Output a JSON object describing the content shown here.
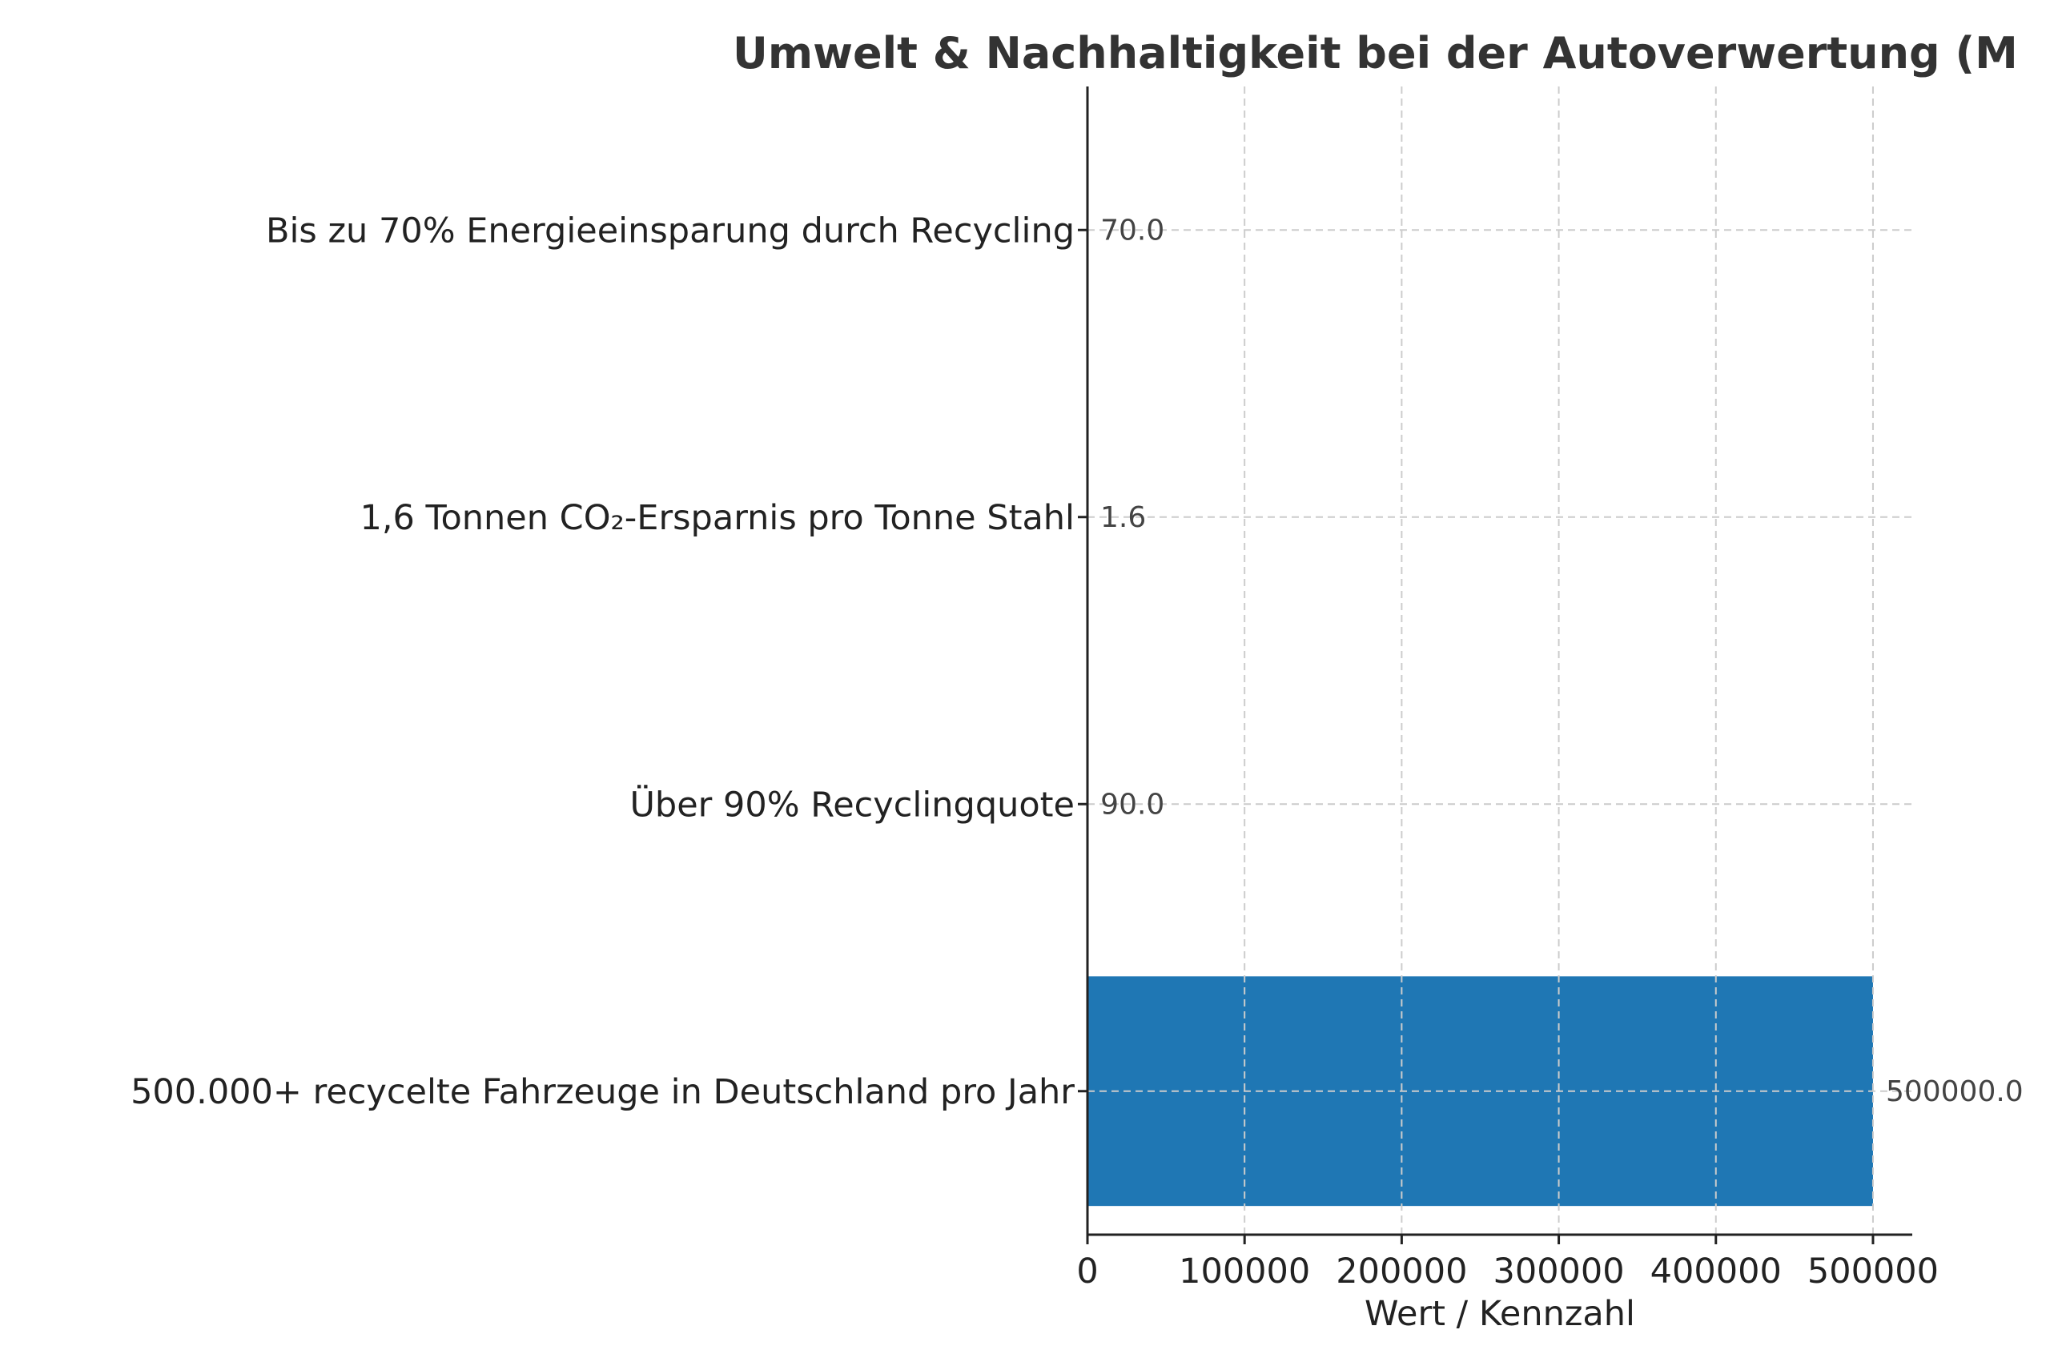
{
  "chart_data": {
    "type": "bar",
    "orientation": "horizontal",
    "title": "Umwelt & Nachhaltigkeit bei der Autoverwertung (M",
    "xlabel": "Wert / Kennzahl",
    "ylabel": "",
    "categories": [
      "500.000+ recycelte Fahrzeuge in Deutschland pro Jahr",
      "Über 90% Recyclingquote",
      "1,6 Tonnen CO₂-Ersparnis pro Tonne Stahl",
      "Bis zu 70% Energieeinsparung durch Recycling"
    ],
    "values": [
      500000,
      90,
      1.6,
      70
    ],
    "data_labels": [
      "500000.0",
      "90.0",
      "1.6",
      "70.0"
    ],
    "xlim": [
      0,
      525000
    ],
    "xticks": [
      0,
      100000,
      200000,
      300000,
      400000,
      500000
    ],
    "xtick_labels": [
      "0",
      "100000",
      "200000",
      "300000",
      "400000",
      "500000"
    ],
    "grid": true,
    "bar_color": "#1f77b4"
  }
}
